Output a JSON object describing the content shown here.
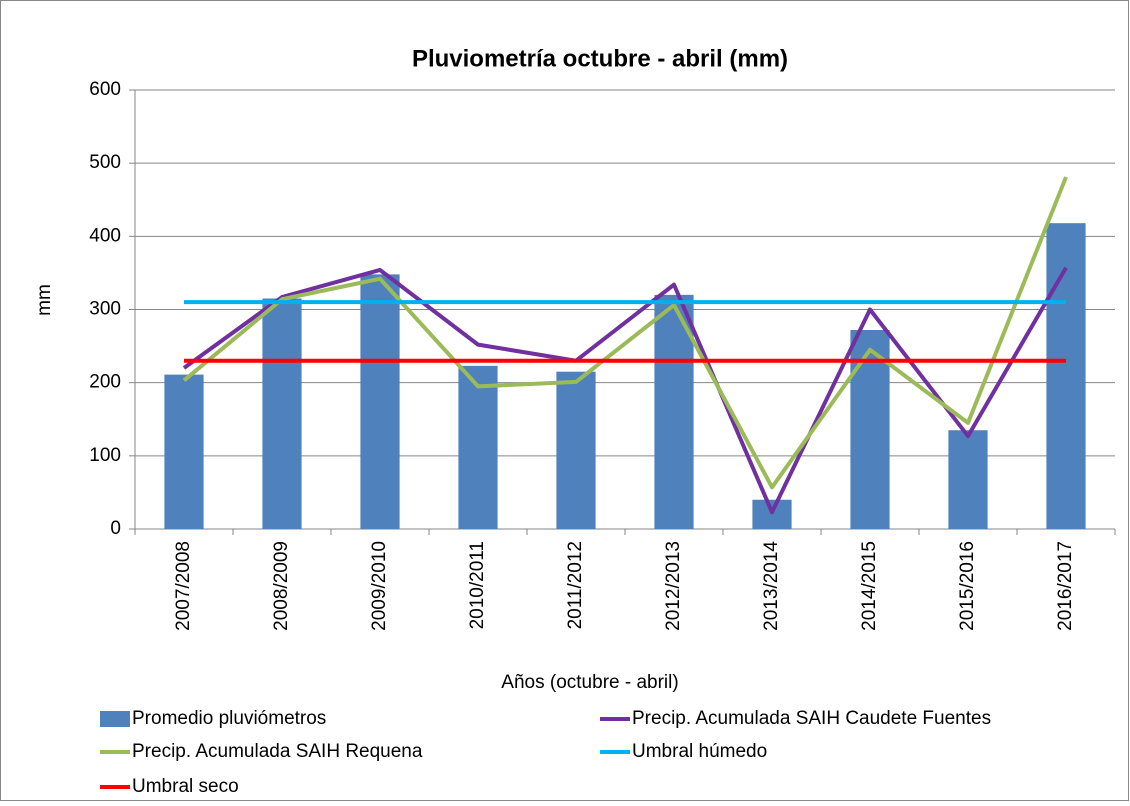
{
  "chart_data": {
    "type": "bar",
    "title": "Pluviometría octubre - abril (mm)",
    "x_label": "Años (octubre - abril)",
    "y_label": "mm",
    "categories": [
      "2007/2008",
      "2008/2009",
      "2009/2010",
      "2010/2011",
      "2011/2012",
      "2012/2013",
      "2013/2014",
      "2014/2015",
      "2015/2016",
      "2016/2017"
    ],
    "series": [
      {
        "name": "Promedio pluviómetros",
        "type": "bar",
        "color": "#4f81bd",
        "values": [
          211,
          315,
          348,
          223,
          215,
          320,
          40,
          272,
          135,
          418
        ]
      },
      {
        "name": "Precip. Acumulada SAIH Caudete Fuentes",
        "type": "line",
        "color": "#7030a0",
        "values": [
          220,
          317,
          354,
          252,
          230,
          334,
          23,
          300,
          127,
          357
        ]
      },
      {
        "name": "Precip. Acumulada SAIH Requena",
        "type": "line",
        "color": "#9bbb59",
        "values": [
          203,
          314,
          342,
          195,
          201,
          306,
          57,
          245,
          145,
          481
        ]
      },
      {
        "name": "Umbral húmedo",
        "type": "line",
        "color": "#00b0f0",
        "values": [
          310,
          310,
          310,
          310,
          310,
          310,
          310,
          310,
          310,
          310
        ]
      },
      {
        "name": "Umbral seco",
        "type": "line",
        "color": "#ff0000",
        "values": [
          230,
          230,
          230,
          230,
          230,
          230,
          230,
          230,
          230,
          230
        ]
      }
    ],
    "ylim": [
      0,
      600
    ],
    "yticks": [
      0,
      100,
      200,
      300,
      400,
      500,
      600
    ],
    "grid": true,
    "legend": "bottom"
  }
}
